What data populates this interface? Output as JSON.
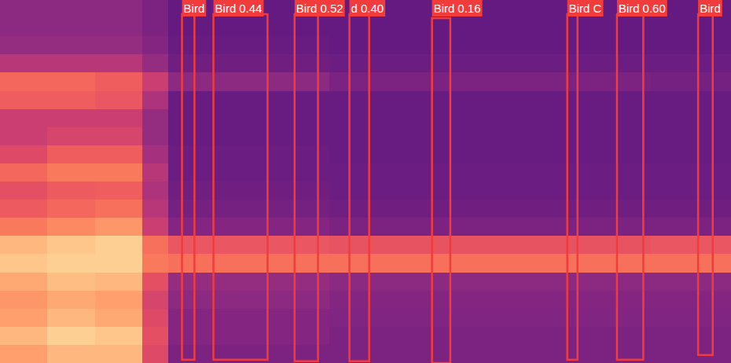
{
  "chart_data": {
    "type": "spectrogram",
    "xlim": [
      0,
      100
    ],
    "ylim": [
      0,
      100
    ],
    "tick_labels": false,
    "zlim": [
      0,
      1
    ],
    "x_bins": [
      0,
      6.5,
      13,
      19.5,
      23,
      45,
      67,
      89,
      100
    ],
    "y_bins": [
      0,
      5,
      10,
      15,
      20,
      25,
      30,
      35,
      40,
      45,
      50,
      55,
      60,
      65,
      70,
      75,
      80,
      85,
      90,
      95,
      100
    ],
    "cells": [
      [
        0.8,
        0.85,
        0.85,
        0.6,
        0.36,
        0.36,
        0.36,
        0.36
      ],
      [
        0.85,
        0.9,
        0.88,
        0.62,
        0.38,
        0.36,
        0.36,
        0.36
      ],
      [
        0.8,
        0.85,
        0.82,
        0.6,
        0.38,
        0.37,
        0.37,
        0.37
      ],
      [
        0.78,
        0.82,
        0.8,
        0.58,
        0.4,
        0.38,
        0.38,
        0.38
      ],
      [
        0.82,
        0.86,
        0.85,
        0.62,
        0.42,
        0.4,
        0.4,
        0.4
      ],
      [
        0.88,
        0.9,
        0.9,
        0.72,
        0.7,
        0.7,
        0.7,
        0.7
      ],
      [
        0.85,
        0.88,
        0.9,
        0.7,
        0.64,
        0.63,
        0.63,
        0.64
      ],
      [
        0.72,
        0.75,
        0.78,
        0.55,
        0.38,
        0.36,
        0.36,
        0.36
      ],
      [
        0.65,
        0.68,
        0.7,
        0.5,
        0.34,
        0.33,
        0.33,
        0.33
      ],
      [
        0.62,
        0.65,
        0.66,
        0.48,
        0.33,
        0.32,
        0.32,
        0.32
      ],
      [
        0.68,
        0.72,
        0.72,
        0.5,
        0.32,
        0.32,
        0.32,
        0.32
      ],
      [
        0.6,
        0.66,
        0.66,
        0.46,
        0.32,
        0.31,
        0.31,
        0.31
      ],
      [
        0.55,
        0.58,
        0.58,
        0.42,
        0.31,
        0.31,
        0.31,
        0.31
      ],
      [
        0.55,
        0.55,
        0.55,
        0.42,
        0.31,
        0.31,
        0.31,
        0.31
      ],
      [
        0.66,
        0.66,
        0.64,
        0.48,
        0.31,
        0.31,
        0.31,
        0.31
      ],
      [
        0.68,
        0.68,
        0.66,
        0.55,
        0.4,
        0.36,
        0.36,
        0.34
      ],
      [
        0.5,
        0.5,
        0.5,
        0.42,
        0.33,
        0.32,
        0.32,
        0.32
      ],
      [
        0.42,
        0.42,
        0.42,
        0.38,
        0.31,
        0.3,
        0.3,
        0.3
      ],
      [
        0.4,
        0.4,
        0.4,
        0.36,
        0.3,
        0.3,
        0.3,
        0.3
      ],
      [
        0.4,
        0.4,
        0.4,
        0.36,
        0.3,
        0.3,
        0.3,
        0.3
      ]
    ],
    "color": "#f23c3c",
    "detections": [
      {
        "label": "Bird",
        "start": 24.9,
        "end": 26.6,
        "low": 0.9,
        "high": 96.1
      },
      {
        "label": "Bird",
        "score": 0.44,
        "start": 29.2,
        "end": 36.6,
        "low": 0.9,
        "high": 96.1
      },
      {
        "label": "Bird",
        "score": 0.52,
        "start": 40.3,
        "end": 43.5,
        "low": 0.5,
        "high": 96.1
      },
      {
        "label": "d",
        "score": 0.4,
        "start": 47.8,
        "end": 50.5,
        "low": 0.5,
        "high": 96.1
      },
      {
        "label": "Bird",
        "score": 0.16,
        "start": 59.1,
        "end": 61.6,
        "low": 0.0,
        "high": 95.0
      },
      {
        "label": "Bird C",
        "start": 77.6,
        "end": 79.0,
        "low": 0.9,
        "high": 96.1
      },
      {
        "label": "Bird",
        "score": 0.6,
        "start": 84.4,
        "end": 88.0,
        "low": 0.9,
        "high": 96.1
      },
      {
        "label": "Bird",
        "start": 95.5,
        "end": 97.5,
        "low": 2.2,
        "high": 96.1
      }
    ]
  }
}
